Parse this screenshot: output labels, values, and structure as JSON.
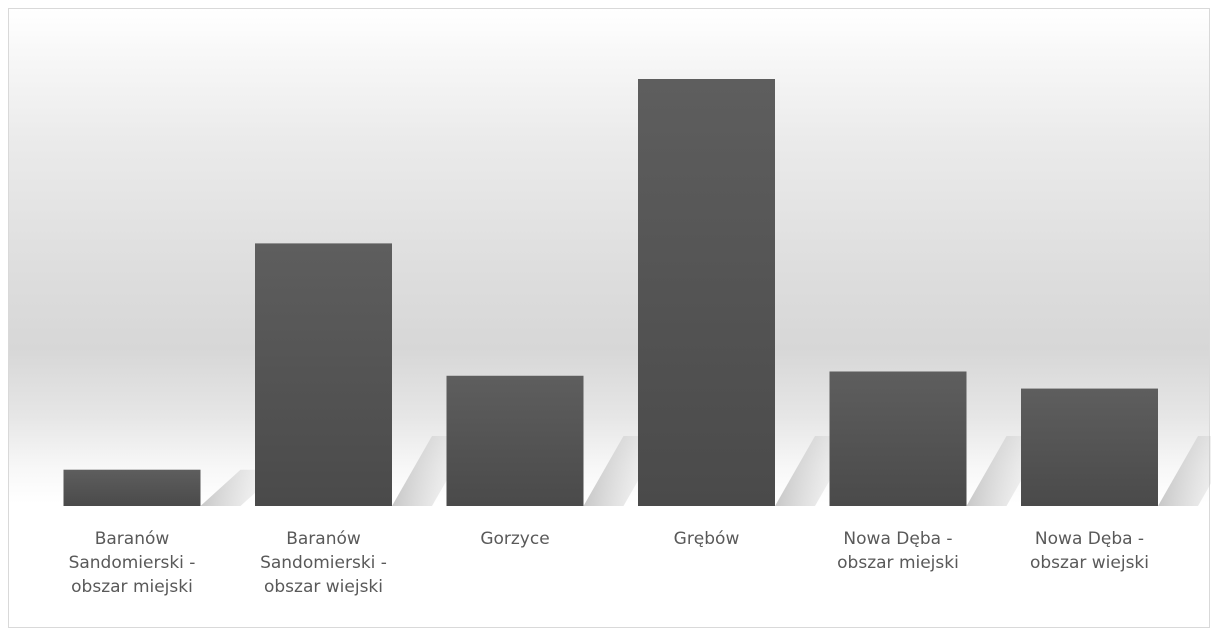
{
  "chart_data": {
    "type": "bar",
    "categories": [
      "Baranów Sandomierski - obszar miejski",
      "Baranów Sandomierski - obszar wiejski",
      "Gorzyce",
      "Grębów",
      "Nowa Dęba - obszar miejski",
      "Nowa Dęba - obszar wiejski"
    ],
    "label_lines": [
      [
        "Baranów",
        "Sandomierski -",
        "obszar miejski"
      ],
      [
        "Baranów",
        "Sandomierski -",
        "obszar wiejski"
      ],
      [
        "Gorzyce"
      ],
      [
        "Grębów"
      ],
      [
        "Nowa Dęba -",
        "obszar miejski"
      ],
      [
        "Nowa Dęba -",
        "obszar wiejski"
      ]
    ],
    "values": [
      8.5,
      61.5,
      30.5,
      100,
      31.5,
      27.5
    ],
    "bar_color": "#555555",
    "background_color": "#dadada",
    "title": "",
    "xlabel": "",
    "ylabel": "",
    "ylim": [
      0,
      100
    ],
    "grid": false,
    "legend": "none"
  }
}
